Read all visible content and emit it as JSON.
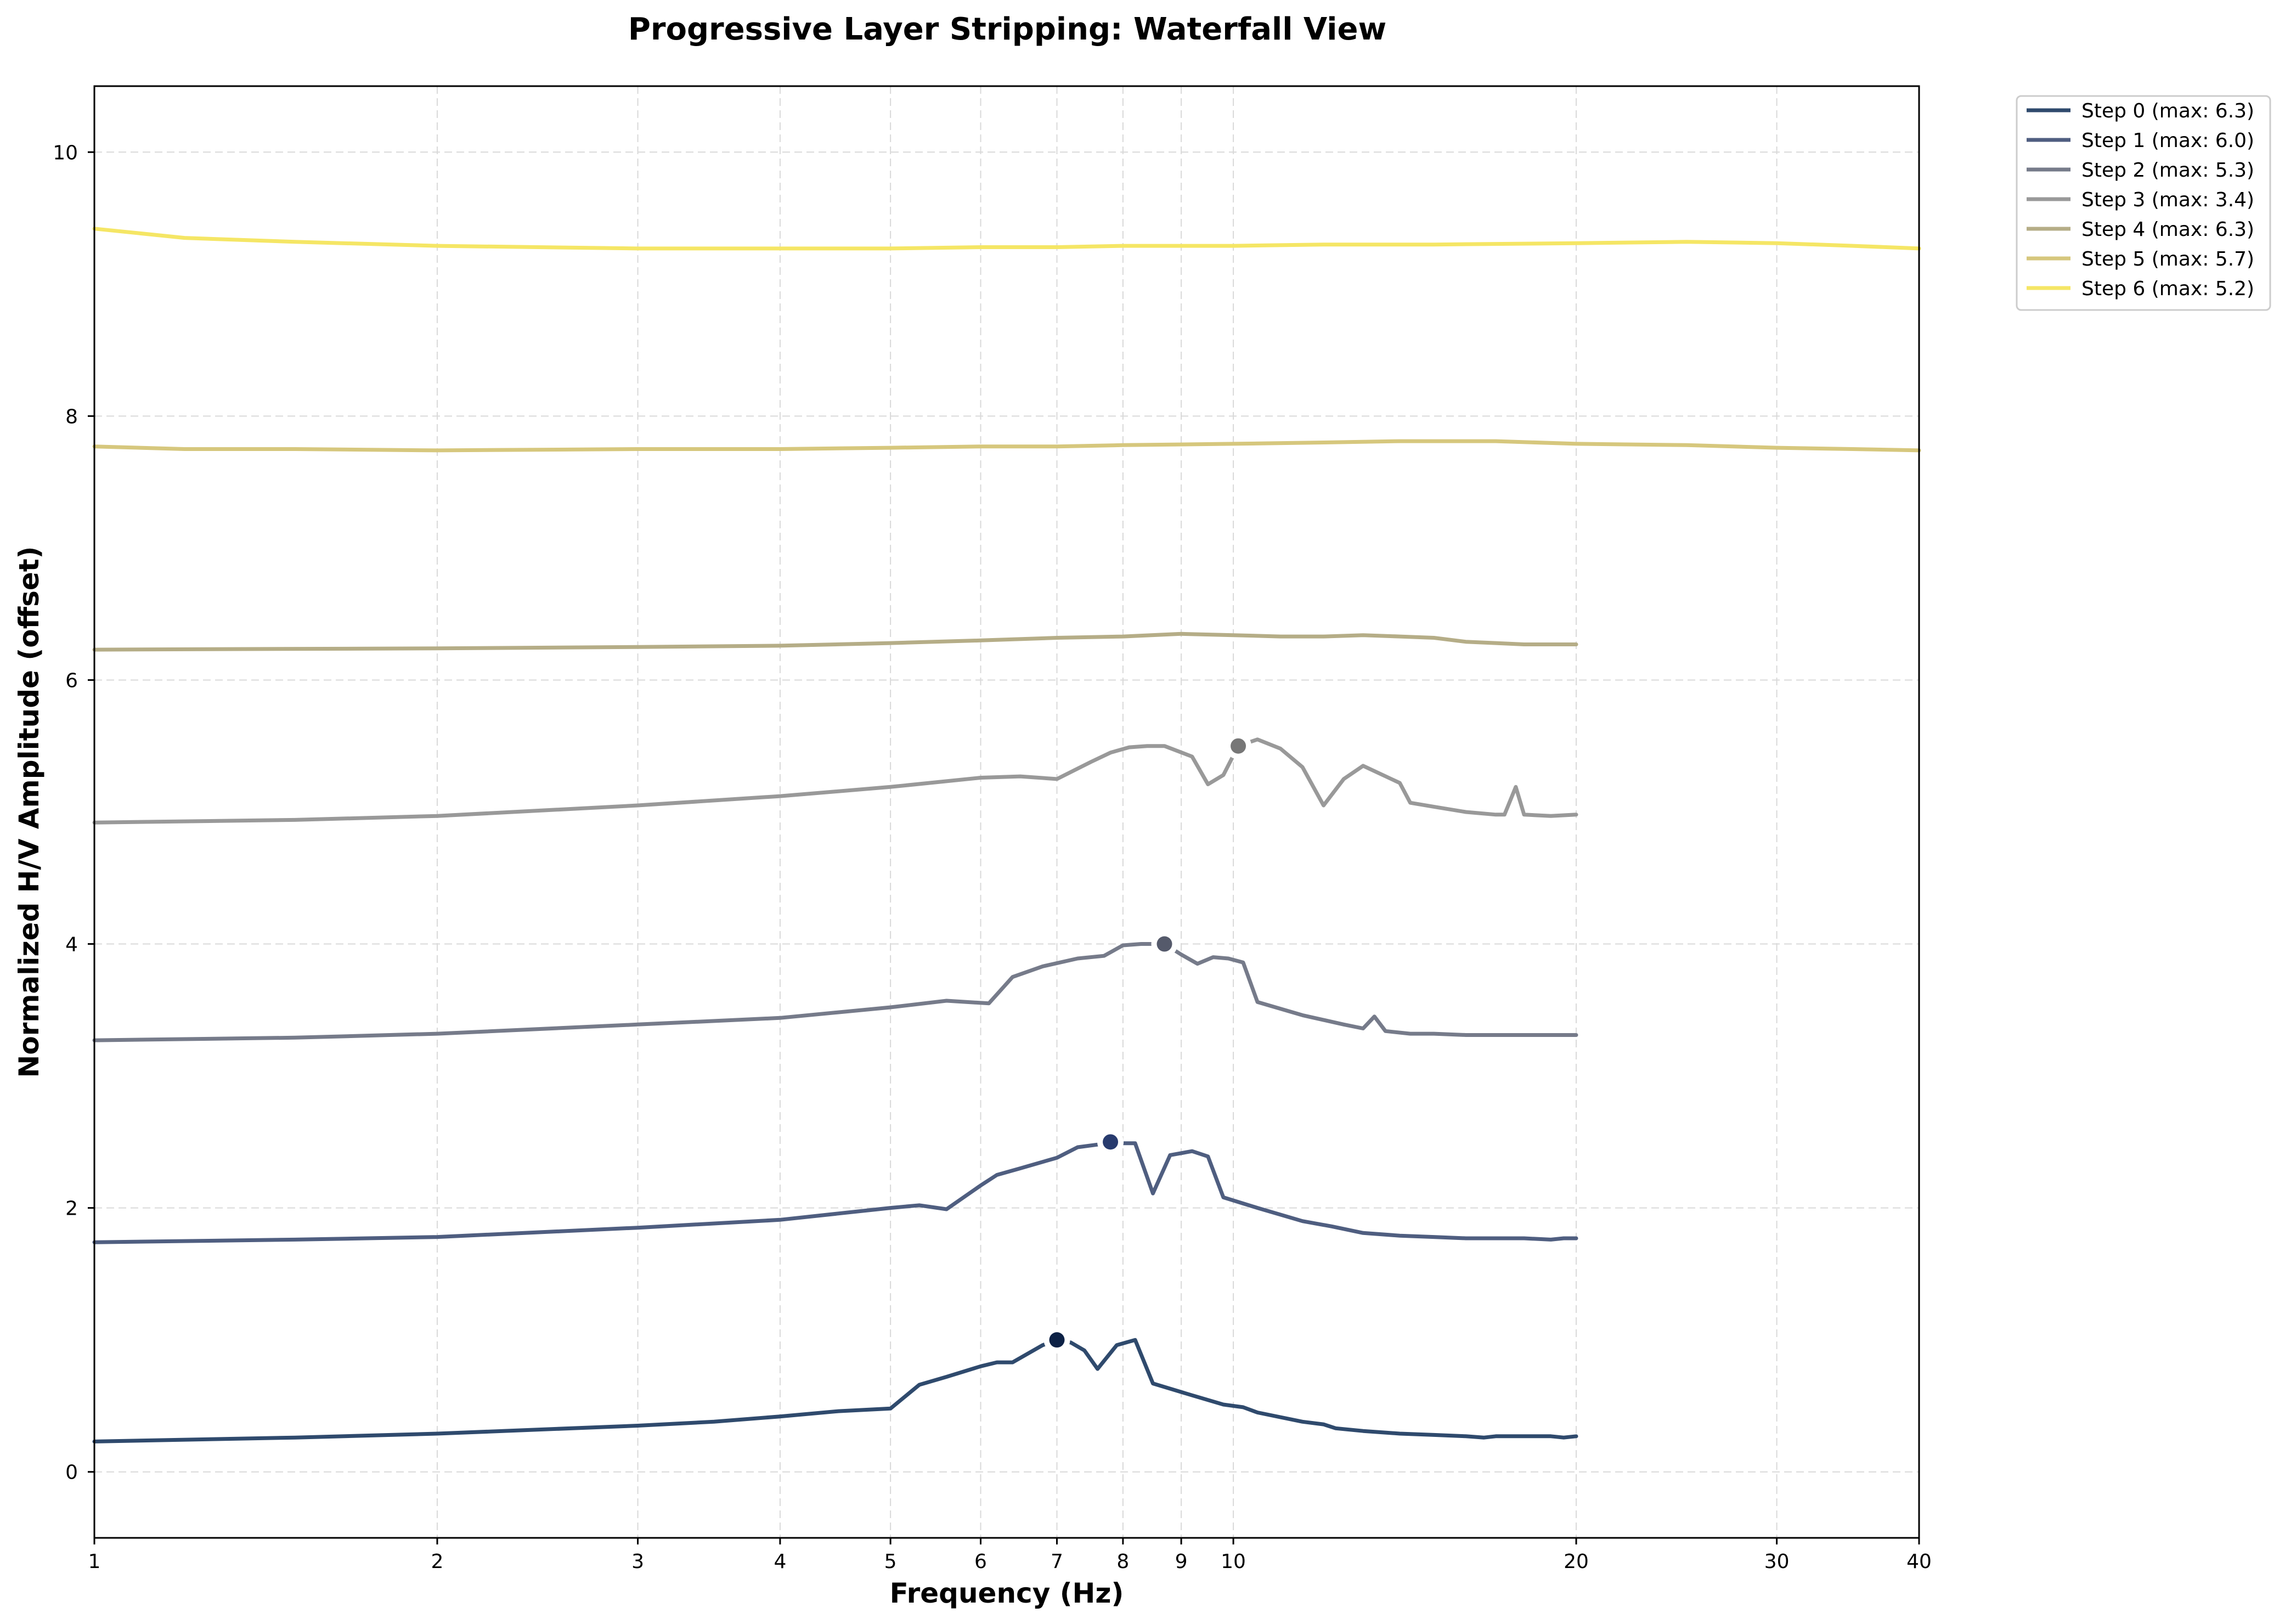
{
  "chart_data": {
    "type": "line",
    "title": "Progressive Layer Stripping: Waterfall View",
    "xlabel": "Frequency (Hz)",
    "ylabel": "Normalized H/V Amplitude (offset)",
    "xscale": "log",
    "xlim": [
      1,
      40
    ],
    "ylim": [
      -0.5,
      10.5
    ],
    "xticks": [
      {
        "value": 1,
        "label": "1"
      },
      {
        "value": 2,
        "label": "2"
      },
      {
        "value": 3,
        "label": "3"
      },
      {
        "value": 4,
        "label": "4"
      },
      {
        "value": 5,
        "label": "5"
      },
      {
        "value": 6,
        "label": "6"
      },
      {
        "value": 7,
        "label": "7"
      },
      {
        "value": 8,
        "label": "8"
      },
      {
        "value": 9,
        "label": "9"
      },
      {
        "value": 10,
        "label": "10"
      },
      {
        "value": 20,
        "label": "20"
      },
      {
        "value": 30,
        "label": "30"
      },
      {
        "value": 40,
        "label": "40"
      }
    ],
    "yticks": [
      {
        "value": 0,
        "label": "0"
      },
      {
        "value": 2,
        "label": "2"
      },
      {
        "value": 4,
        "label": "4"
      },
      {
        "value": 6,
        "label": "6"
      },
      {
        "value": 8,
        "label": "8"
      },
      {
        "value": 10,
        "label": "10"
      }
    ],
    "grid": true,
    "legend_position": "outside top-right",
    "series": [
      {
        "name": "Step 0 (max: 6.3)",
        "color": "#2f4a6d",
        "peak": {
          "x": 7.0,
          "y": 1.0,
          "color": "#0d2145"
        },
        "x": [
          1,
          1.5,
          2,
          3,
          3.5,
          4,
          4.5,
          5,
          5.3,
          5.6,
          6,
          6.2,
          6.4,
          6.8,
          7.0,
          7.2,
          7.4,
          7.6,
          7.9,
          8.2,
          8.5,
          9.2,
          9.8,
          10.2,
          10.5,
          11.5,
          12.0,
          12.3,
          13,
          14,
          15,
          16,
          16.6,
          17,
          18,
          19,
          19.5,
          20
        ],
        "y": [
          0.23,
          0.26,
          0.29,
          0.35,
          0.38,
          0.42,
          0.46,
          0.48,
          0.66,
          0.72,
          0.8,
          0.83,
          0.83,
          0.96,
          1.0,
          0.98,
          0.92,
          0.78,
          0.96,
          1.0,
          0.67,
          0.58,
          0.51,
          0.49,
          0.45,
          0.38,
          0.36,
          0.33,
          0.31,
          0.29,
          0.28,
          0.27,
          0.26,
          0.27,
          0.27,
          0.27,
          0.26,
          0.27
        ]
      },
      {
        "name": "Step 1 (max: 6.0)",
        "color": "#4f5e80",
        "peak": {
          "x": 7.8,
          "y": 2.5,
          "color": "#283b6e"
        },
        "x": [
          1,
          1.5,
          2,
          3,
          4,
          5,
          5.3,
          5.6,
          6,
          6.2,
          6.5,
          7.0,
          7.3,
          7.6,
          7.8,
          8.0,
          8.2,
          8.5,
          8.8,
          9.2,
          9.5,
          9.8,
          10.5,
          11.5,
          12.2,
          13,
          14,
          15,
          16,
          17,
          18,
          19,
          19.5,
          20
        ],
        "y": [
          1.74,
          1.76,
          1.78,
          1.85,
          1.91,
          2.0,
          2.02,
          1.99,
          2.17,
          2.25,
          2.3,
          2.38,
          2.46,
          2.48,
          2.5,
          2.49,
          2.49,
          2.11,
          2.4,
          2.43,
          2.39,
          2.08,
          2.0,
          1.9,
          1.86,
          1.81,
          1.79,
          1.78,
          1.77,
          1.77,
          1.77,
          1.76,
          1.77,
          1.77
        ]
      },
      {
        "name": "Step 2 (max: 5.3)",
        "color": "#767b8a",
        "peak": {
          "x": 8.7,
          "y": 4.0,
          "color": "#555a6b"
        },
        "x": [
          1,
          1.5,
          2,
          3,
          4,
          5,
          5.6,
          6.1,
          6.4,
          6.8,
          7.3,
          7.7,
          8.0,
          8.3,
          8.7,
          9.0,
          9.3,
          9.6,
          9.9,
          10.2,
          10.5,
          11.5,
          12.5,
          13,
          13.3,
          13.6,
          14.3,
          15,
          16,
          17,
          18,
          19,
          20
        ],
        "y": [
          3.27,
          3.29,
          3.32,
          3.39,
          3.44,
          3.52,
          3.57,
          3.55,
          3.75,
          3.83,
          3.89,
          3.91,
          3.99,
          4.0,
          4.0,
          3.92,
          3.85,
          3.9,
          3.89,
          3.86,
          3.56,
          3.46,
          3.39,
          3.36,
          3.45,
          3.34,
          3.32,
          3.32,
          3.31,
          3.31,
          3.31,
          3.31,
          3.31
        ]
      },
      {
        "name": "Step 3 (max: 3.4)",
        "color": "#999999",
        "peak": {
          "x": 10.1,
          "y": 5.5,
          "color": "#777777"
        },
        "x": [
          1,
          1.5,
          2,
          3,
          4,
          5,
          6,
          6.5,
          7.0,
          7.5,
          7.8,
          8.1,
          8.4,
          8.7,
          9.2,
          9.5,
          9.8,
          10.1,
          10.5,
          11.0,
          11.5,
          12.0,
          12.5,
          13.0,
          14.0,
          14.3,
          15,
          16,
          17,
          17.3,
          17.7,
          18,
          19,
          20
        ],
        "y": [
          4.92,
          4.94,
          4.97,
          5.05,
          5.12,
          5.19,
          5.26,
          5.27,
          5.25,
          5.38,
          5.45,
          5.49,
          5.5,
          5.5,
          5.42,
          5.21,
          5.28,
          5.5,
          5.55,
          5.48,
          5.34,
          5.05,
          5.25,
          5.35,
          5.22,
          5.07,
          5.04,
          5.0,
          4.98,
          4.98,
          5.19,
          4.98,
          4.97,
          4.98
        ]
      },
      {
        "name": "Step 4 (max: 6.3)",
        "color": "#b5ad87",
        "x": [
          1,
          2,
          3,
          4,
          5,
          6,
          7,
          8,
          9,
          10,
          11,
          12,
          13,
          14,
          15,
          16,
          17,
          18,
          20
        ],
        "y": [
          6.23,
          6.24,
          6.25,
          6.26,
          6.28,
          6.3,
          6.32,
          6.33,
          6.35,
          6.34,
          6.33,
          6.33,
          6.34,
          6.33,
          6.32,
          6.29,
          6.28,
          6.27,
          6.27
        ]
      },
      {
        "name": "Step 5 (max: 5.7)",
        "color": "#d6c77d",
        "x": [
          1,
          1.2,
          1.5,
          2,
          3,
          4,
          5,
          6,
          7,
          8,
          10,
          12,
          14,
          15,
          16,
          17,
          20,
          25,
          30,
          35,
          40
        ],
        "y": [
          7.77,
          7.75,
          7.75,
          7.74,
          7.75,
          7.75,
          7.76,
          7.77,
          7.77,
          7.78,
          7.79,
          7.8,
          7.81,
          7.81,
          7.81,
          7.81,
          7.79,
          7.78,
          7.76,
          7.75,
          7.74
        ]
      },
      {
        "name": "Step 6 (max: 5.2)",
        "color": "#f5e665",
        "x": [
          1,
          1.2,
          1.5,
          2,
          3,
          4,
          5,
          6,
          7,
          8,
          10,
          12,
          15,
          20,
          25,
          30,
          35,
          40
        ],
        "y": [
          9.42,
          9.35,
          9.32,
          9.29,
          9.27,
          9.27,
          9.27,
          9.28,
          9.28,
          9.29,
          9.29,
          9.3,
          9.3,
          9.31,
          9.32,
          9.31,
          9.29,
          9.27
        ]
      }
    ]
  }
}
